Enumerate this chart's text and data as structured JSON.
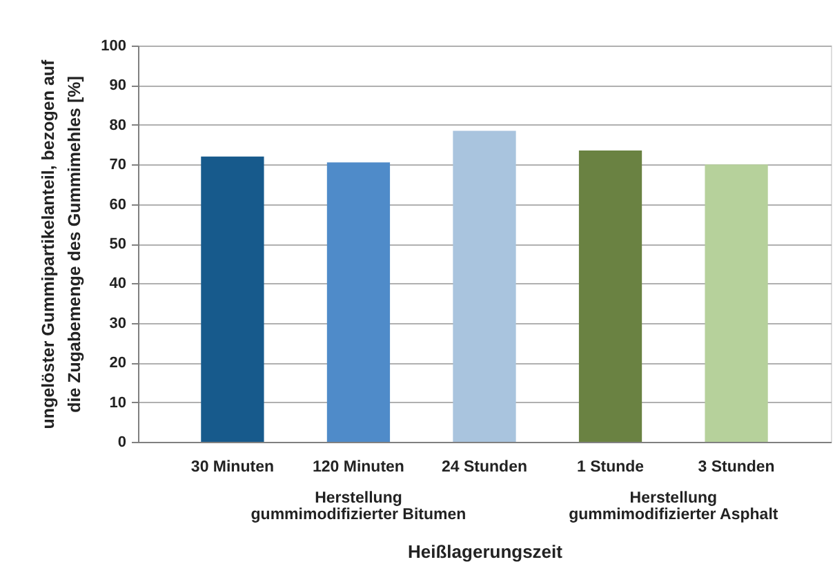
{
  "chart_data": {
    "type": "bar",
    "categories": [
      "30 Minuten",
      "120 Minuten",
      "24 Stunden",
      "1 Stunde",
      "3 Stunden"
    ],
    "values": [
      72,
      70.5,
      78.5,
      73.5,
      70
    ],
    "colors": [
      "#175a8c",
      "#4f8bc9",
      "#a9c4de",
      "#6a8242",
      "#b6d19b"
    ],
    "xlabel": "Heißlagerungszeit",
    "ylabel": "ungelöster Gummipartikelanteil, bezogen auf die Zugabemenge des Gummimehles [%]",
    "ylim": [
      0,
      100
    ],
    "yticks": [
      0,
      10,
      20,
      30,
      40,
      50,
      60,
      70,
      80,
      90,
      100
    ],
    "grid": "y",
    "legend": false,
    "annotations": [
      "Herstellung gummimodifizierter Bitumen",
      "Herstellung gummimodifizierter Asphalt"
    ]
  }
}
